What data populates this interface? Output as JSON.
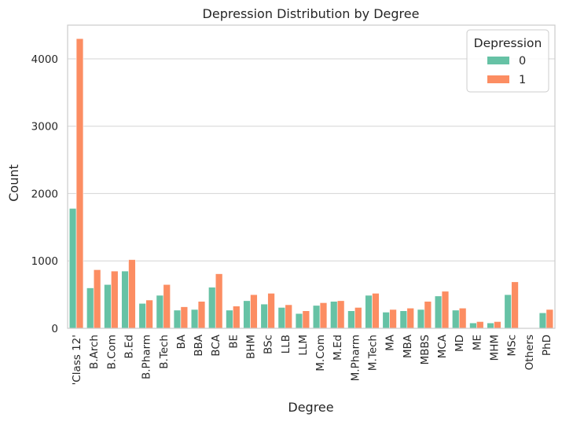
{
  "chart_data": {
    "type": "bar",
    "title": "Depression Distribution by Degree",
    "xlabel": "Degree",
    "ylabel": "Count",
    "ylim": [
      0,
      4500
    ],
    "yticks": [
      0,
      1000,
      2000,
      3000,
      4000
    ],
    "grid": "horizontal",
    "legend": {
      "title": "Depression",
      "placement": "top-right"
    },
    "categories": [
      "'Class 12'",
      "B.Arch",
      "B.Com",
      "B.Ed",
      "B.Pharm",
      "B.Tech",
      "BA",
      "BBA",
      "BCA",
      "BE",
      "BHM",
      "BSc",
      "LLB",
      "LLM",
      "M.Com",
      "M.Ed",
      "M.Pharm",
      "M.Tech",
      "MA",
      "MBA",
      "MBBS",
      "MCA",
      "MD",
      "ME",
      "MHM",
      "MSc",
      "Others",
      "PhD"
    ],
    "series": [
      {
        "name": "0",
        "color": "#66c2a5",
        "values": [
          1780,
          600,
          650,
          850,
          370,
          490,
          270,
          280,
          610,
          270,
          410,
          360,
          310,
          220,
          340,
          400,
          260,
          490,
          240,
          260,
          280,
          480,
          270,
          80,
          80,
          500,
          3,
          230
        ]
      },
      {
        "name": "1",
        "color": "#fc8d62",
        "values": [
          4300,
          870,
          850,
          1020,
          420,
          650,
          320,
          400,
          810,
          330,
          500,
          520,
          350,
          260,
          380,
          410,
          310,
          520,
          280,
          300,
          400,
          550,
          300,
          100,
          100,
          690,
          6,
          280
        ]
      }
    ]
  }
}
